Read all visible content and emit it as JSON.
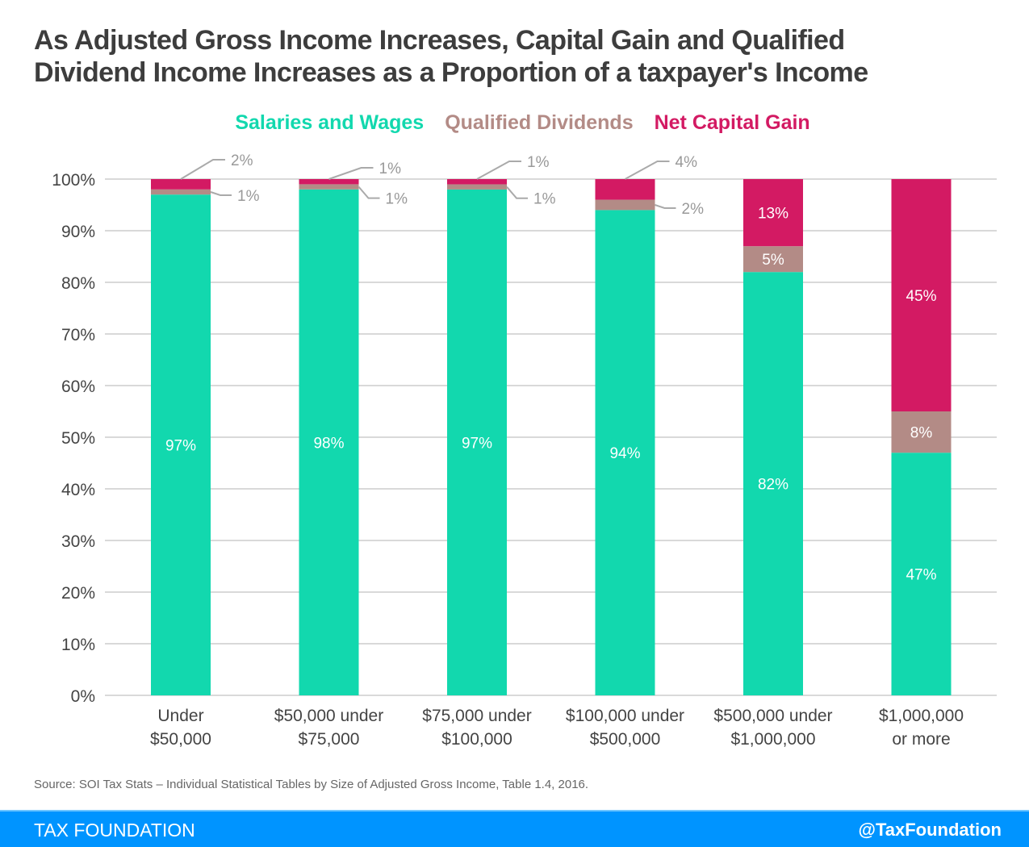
{
  "chart_data": {
    "type": "bar",
    "stacked": true,
    "title": "As Adjusted Gross Income Increases, Capital Gain and Qualified Dividend Income Increases as a Proportion of a taxpayer's Income",
    "title_lines": [
      "As Adjusted Gross Income Increases, Capital Gain and Qualified",
      "Dividend Income Increases as a Proportion of a taxpayer's Income"
    ],
    "xlabel": "",
    "ylabel": "",
    "ylim": [
      0,
      100
    ],
    "yticks": [
      0,
      10,
      20,
      30,
      40,
      50,
      60,
      70,
      80,
      90,
      100
    ],
    "ytick_labels": [
      "0%",
      "10%",
      "20%",
      "30%",
      "40%",
      "50%",
      "60%",
      "70%",
      "80%",
      "90%",
      "100%"
    ],
    "grid": true,
    "legend_position": "top-center",
    "categories": [
      [
        "Under",
        "$50,000"
      ],
      [
        "$50,000 under",
        "$75,000"
      ],
      [
        "$75,000 under",
        "$100,000"
      ],
      [
        "$100,000 under",
        "$500,000"
      ],
      [
        "$500,000 under",
        "$1,000,000"
      ],
      [
        "$1,000,000",
        "or more"
      ]
    ],
    "series": [
      {
        "name": "Salaries and Wages",
        "color": "#12d8ae",
        "values": [
          97,
          98,
          97,
          94,
          82,
          47
        ],
        "labels": [
          "97%",
          "98%",
          "97%",
          "94%",
          "82%",
          "47%"
        ]
      },
      {
        "name": "Qualified Dividends",
        "color": "#b38b86",
        "values": [
          1,
          1,
          1,
          2,
          5,
          8
        ],
        "labels": [
          "1%",
          "1%",
          "1%",
          "2%",
          "5%",
          "8%"
        ]
      },
      {
        "name": "Net Capital Gain",
        "color": "#d31a63",
        "values": [
          2,
          1,
          1,
          4,
          13,
          45
        ],
        "labels": [
          "2%",
          "1%",
          "1%",
          "4%",
          "13%",
          "45%"
        ]
      }
    ]
  },
  "source": "Source: SOI Tax Stats – Individual Statistical Tables by Size of Adjusted Gross Income, Table 1.4, 2016.",
  "footer": {
    "brand": "TAX FOUNDATION",
    "handle": "@TaxFoundation",
    "color": "#0094ff"
  }
}
